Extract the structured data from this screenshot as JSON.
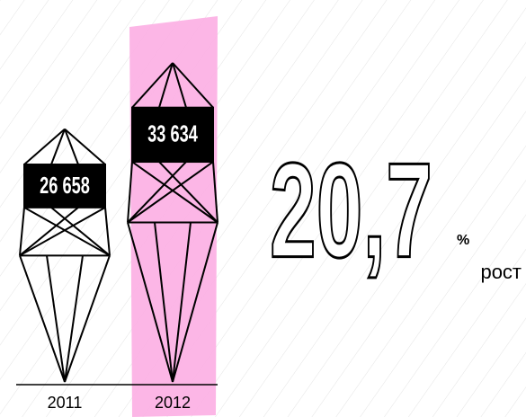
{
  "chart_data": {
    "type": "pictograph",
    "categories": [
      "2011",
      "2012"
    ],
    "values": [
      26658,
      33634
    ],
    "value_labels": [
      "26 658",
      "33 634"
    ],
    "highlight": 1,
    "highlight_color": "#fcaee3",
    "annotation": {
      "value": "20,7",
      "unit": "%",
      "label": "рост"
    }
  }
}
